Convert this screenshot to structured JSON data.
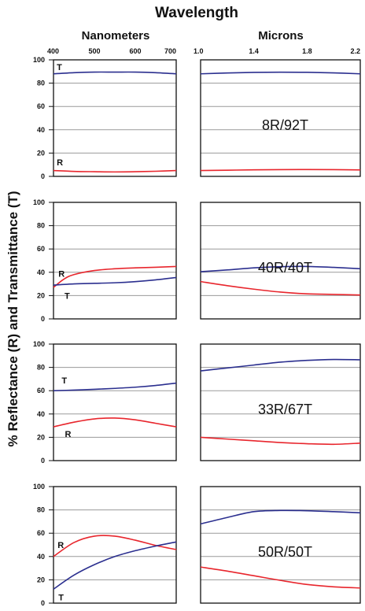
{
  "chart_data": {
    "type": "line",
    "title": "Wavelength",
    "ylabel": "% Reflectance (R) and Transmittance (T)",
    "ylim": [
      0,
      100
    ],
    "y_ticks": [
      "0",
      "20",
      "40",
      "60",
      "80",
      "100"
    ],
    "grid": "horizontal",
    "colors": {
      "R": "#e8262d",
      "T": "#2b2f8f"
    },
    "columns": [
      {
        "title": "Nanometers",
        "xlim": [
          400,
          700
        ],
        "x_ticks": [
          {
            "v": 400,
            "label": "400"
          },
          {
            "v": 500,
            "label": "500"
          },
          {
            "v": 600,
            "label": "600"
          },
          {
            "v": 700,
            "label": "700"
          }
        ]
      },
      {
        "title": "Microns",
        "xlim": [
          1.0,
          2.2
        ],
        "x_ticks": [
          {
            "v": 1.0,
            "label": "1.0"
          },
          {
            "v": 1.4,
            "label": "1.4"
          },
          {
            "v": 1.8,
            "label": "1.8"
          },
          {
            "v": 2.2,
            "label": "2.2"
          }
        ]
      }
    ],
    "panels": [
      {
        "ratio": "8R/92T",
        "visible": {
          "series": [
            {
              "name": "T",
              "x": [
                400,
                450,
                500,
                550,
                600,
                650,
                700
              ],
              "y": [
                88,
                89,
                89.5,
                89.5,
                89.5,
                89,
                88
              ],
              "label_pos": {
                "x": 408,
                "y": 94
              }
            },
            {
              "name": "R",
              "x": [
                400,
                450,
                500,
                550,
                600,
                650,
                700
              ],
              "y": [
                5,
                4.3,
                4,
                3.8,
                4,
                4.4,
                5
              ],
              "label_pos": {
                "x": 408,
                "y": 12
              }
            }
          ]
        },
        "nir": {
          "series": [
            {
              "name": "T",
              "x": [
                1.0,
                1.2,
                1.4,
                1.6,
                1.8,
                2.0,
                2.2
              ],
              "y": [
                88,
                88.7,
                89.2,
                89.4,
                89.3,
                88.8,
                88
              ]
            },
            {
              "name": "R",
              "x": [
                1.0,
                1.2,
                1.4,
                1.6,
                1.8,
                2.0,
                2.2
              ],
              "y": [
                5,
                5.3,
                5.6,
                5.8,
                5.9,
                5.8,
                5.5
              ]
            }
          ]
        }
      },
      {
        "ratio": "40R/40T",
        "visible": {
          "series": [
            {
              "name": "R",
              "x": [
                400,
                425,
                450,
                500,
                550,
                600,
                650,
                700
              ],
              "y": [
                27,
                34,
                38,
                41.5,
                43,
                43.8,
                44.3,
                45
              ],
              "label_pos": {
                "x": 412,
                "y": 39
              }
            },
            {
              "name": "T",
              "x": [
                400,
                450,
                500,
                550,
                600,
                650,
                700
              ],
              "y": [
                29,
                30,
                30.5,
                31,
                32,
                33.5,
                35.5
              ],
              "label_pos": {
                "x": 427,
                "y": 20
              }
            }
          ]
        },
        "nir": {
          "series": [
            {
              "name": "T",
              "x": [
                1.0,
                1.2,
                1.4,
                1.6,
                1.8,
                2.0,
                2.2
              ],
              "y": [
                40.5,
                42,
                43.8,
                44.8,
                45,
                44.2,
                43
              ]
            },
            {
              "name": "R",
              "x": [
                1.0,
                1.2,
                1.4,
                1.6,
                1.8,
                2.0,
                2.2
              ],
              "y": [
                32,
                28.5,
                25.5,
                23,
                21.5,
                21,
                20.5
              ]
            }
          ]
        }
      },
      {
        "ratio": "33R/67T",
        "visible": {
          "series": [
            {
              "name": "T",
              "x": [
                400,
                450,
                500,
                550,
                600,
                650,
                700
              ],
              "y": [
                60,
                60.5,
                61.2,
                62,
                63,
                64.5,
                66.5
              ],
              "label_pos": {
                "x": 420,
                "y": 69
              }
            },
            {
              "name": "R",
              "x": [
                400,
                450,
                500,
                550,
                600,
                650,
                700
              ],
              "y": [
                29,
                33,
                35.8,
                36.5,
                35,
                32,
                29
              ],
              "label_pos": {
                "x": 428,
                "y": 23
              }
            }
          ]
        },
        "nir": {
          "series": [
            {
              "name": "T",
              "x": [
                1.0,
                1.2,
                1.4,
                1.6,
                1.8,
                2.0,
                2.2
              ],
              "y": [
                77,
                79.5,
                82,
                84.5,
                86,
                86.8,
                86.5
              ]
            },
            {
              "name": "R",
              "x": [
                1.0,
                1.2,
                1.4,
                1.6,
                1.8,
                2.0,
                2.2
              ],
              "y": [
                20,
                18.5,
                17,
                15.5,
                14.5,
                14,
                15
              ]
            }
          ]
        }
      },
      {
        "ratio": "50R/50T",
        "visible": {
          "series": [
            {
              "name": "R",
              "x": [
                400,
                450,
                500,
                550,
                600,
                650,
                700
              ],
              "y": [
                40,
                52,
                57.5,
                57.5,
                54,
                49.5,
                46
              ],
              "label_pos": {
                "x": 410,
                "y": 50
              }
            },
            {
              "name": "T",
              "x": [
                400,
                450,
                500,
                550,
                600,
                650,
                700
              ],
              "y": [
                12,
                24,
                33,
                40,
                45,
                49,
                52.5
              ],
              "label_pos": {
                "x": 412,
                "y": 5
              }
            }
          ]
        },
        "nir": {
          "series": [
            {
              "name": "T",
              "x": [
                1.0,
                1.2,
                1.4,
                1.6,
                1.8,
                2.0,
                2.2
              ],
              "y": [
                68,
                73.5,
                78.5,
                79.5,
                79.3,
                78.5,
                77.5
              ]
            },
            {
              "name": "R",
              "x": [
                1.0,
                1.2,
                1.4,
                1.6,
                1.8,
                2.0,
                2.2
              ],
              "y": [
                31,
                27.5,
                23.5,
                19.5,
                16,
                14,
                13
              ]
            }
          ]
        }
      }
    ]
  }
}
